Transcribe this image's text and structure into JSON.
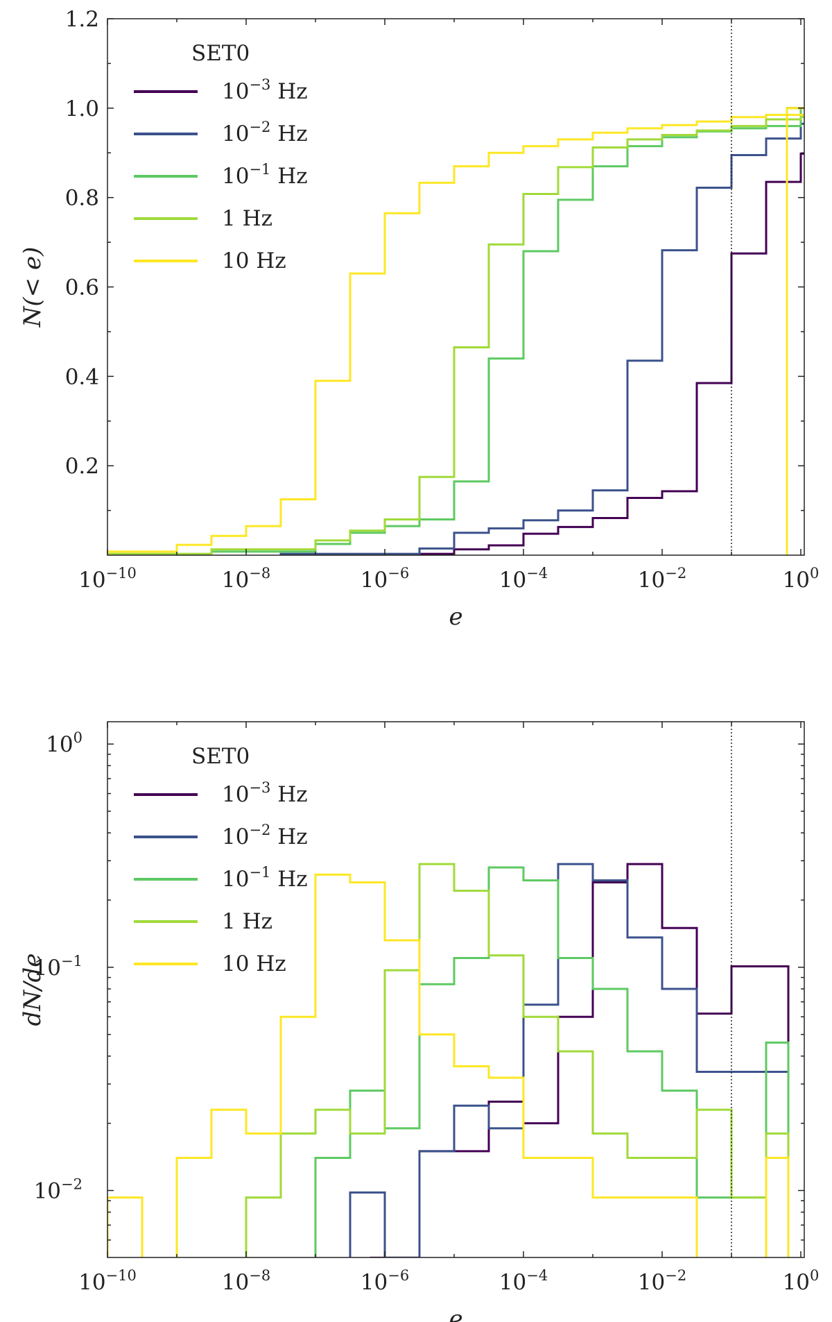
{
  "chart_data": [
    {
      "type": "histogram-step",
      "panel": "cumulative",
      "xlabel": "e",
      "ylabel": "N(< e)",
      "xscale": "log",
      "yscale": "linear",
      "xlim": [
        -10,
        0.05
      ],
      "ylim": [
        0,
        1.2
      ],
      "xticks": [
        {
          "v": -10,
          "b": "10",
          "s": "−10"
        },
        {
          "v": -8,
          "b": "10",
          "s": "−8"
        },
        {
          "v": -6,
          "b": "10",
          "s": "−6"
        },
        {
          "v": -4,
          "b": "10",
          "s": "−4"
        },
        {
          "v": -2,
          "b": "10",
          "s": "−2"
        },
        {
          "v": 0,
          "b": "10",
          "s": "0"
        }
      ],
      "yticks": [
        {
          "v": 0.2,
          "t": "0.2"
        },
        {
          "v": 0.4,
          "t": "0.4"
        },
        {
          "v": 0.6,
          "t": "0.6"
        },
        {
          "v": 0.8,
          "t": "0.8"
        },
        {
          "v": 1.0,
          "t": "1.0"
        },
        {
          "v": 1.2,
          "t": "1.2"
        }
      ],
      "vline_log_e": -1,
      "legend": {
        "title": "SET0",
        "position": "upper-left"
      },
      "series": [
        {
          "name": "10^-3 Hz",
          "label_base": "10",
          "label_sup": "−3",
          "label_unit": " Hz",
          "color": "#440154",
          "bins": [
            -5.5,
            4.0
          ],
          "step_log": 0.5,
          "values": [
            0.003,
            0.013,
            0.022,
            0.048,
            0.063,
            0.083,
            0.128,
            0.143,
            0.385,
            0.675,
            0.835,
            0.898,
            1.0
          ]
        },
        {
          "name": "10^-2 Hz",
          "label_base": "10",
          "label_sup": "−2",
          "label_unit": " Hz",
          "color": "#3b528b",
          "bins": [
            -7.5,
            4.0
          ],
          "step_log": 0.5,
          "values": [
            0.003,
            0.003,
            0.003,
            0.003,
            0.015,
            0.05,
            0.06,
            0.078,
            0.1,
            0.145,
            0.435,
            0.682,
            0.822,
            0.895,
            0.932,
            0.965,
            1.0
          ]
        },
        {
          "name": "10^-1 Hz",
          "label_base": "10",
          "label_sup": "−1",
          "label_unit": " Hz",
          "color": "#5ec962",
          "bins": [
            -8.5,
            4.0
          ],
          "step_log": 0.5,
          "values": [
            0.008,
            0.008,
            0.008,
            0.025,
            0.05,
            0.065,
            0.08,
            0.165,
            0.44,
            0.68,
            0.795,
            0.87,
            0.915,
            0.935,
            0.948,
            0.955,
            0.96,
            1.0
          ]
        },
        {
          "name": "1 Hz",
          "label_base": "1",
          "label_sup": "",
          "label_unit": " Hz",
          "color": "#a0da39",
          "bins": [
            -10.0,
            4.0
          ],
          "step_log": 0.5,
          "values": [
            0.003,
            0.003,
            0.003,
            0.013,
            0.013,
            0.013,
            0.033,
            0.055,
            0.08,
            0.175,
            0.465,
            0.695,
            0.808,
            0.868,
            0.912,
            0.93,
            0.94,
            0.95,
            0.96,
            0.975,
            0.98,
            1.0
          ]
        },
        {
          "name": "10 Hz",
          "label_base": "10",
          "label_sup": "",
          "label_unit": " Hz",
          "color": "#fde725",
          "bins": [
            -10.0,
            4.0
          ],
          "step_log": 0.5,
          "values": [
            0.008,
            0.008,
            0.023,
            0.043,
            0.065,
            0.125,
            0.39,
            0.63,
            0.765,
            0.833,
            0.87,
            0.9,
            0.915,
            0.93,
            0.945,
            0.955,
            0.962,
            0.97,
            0.98,
            0.985,
            0.985,
            1.0
          ]
        }
      ]
    },
    {
      "type": "histogram-step",
      "panel": "differential",
      "xlabel": "e",
      "ylabel": "dN/de",
      "xscale": "log",
      "yscale": "log",
      "xlim": [
        -10,
        0.05
      ],
      "ylim": [
        -2.3,
        0.1
      ],
      "xticks": [
        {
          "v": -10,
          "b": "10",
          "s": "−10"
        },
        {
          "v": -8,
          "b": "10",
          "s": "−8"
        },
        {
          "v": -6,
          "b": "10",
          "s": "−6"
        },
        {
          "v": -4,
          "b": "10",
          "s": "−4"
        },
        {
          "v": -2,
          "b": "10",
          "s": "−2"
        },
        {
          "v": 0,
          "b": "10",
          "s": "0"
        }
      ],
      "yticks": [
        {
          "v": -2,
          "b": "10",
          "s": "−2"
        },
        {
          "v": -1,
          "b": "10",
          "s": "−1"
        },
        {
          "v": 0,
          "b": "10",
          "s": "0"
        }
      ],
      "vline_log_e": -1,
      "legend": {
        "title": "SET0",
        "position": "upper-left"
      },
      "series": [
        {
          "name": "10^-3 Hz",
          "label_base": "10",
          "label_sup": "−3",
          "label_unit": " Hz",
          "color": "#440154",
          "edges": [
            -6.2,
            -5.5,
            -4.5,
            -4.0,
            -3.5,
            -3.0,
            -2.5,
            -2.0,
            -1.5,
            -1.0,
            -0.5,
            -0.18
          ],
          "values": [
            0.005,
            0.015,
            0.025,
            0.02,
            0.06,
            0.24,
            0.29,
            0.15,
            0.062,
            0.101,
            0.101
          ]
        },
        {
          "name": "10^-2 Hz",
          "label_base": "10",
          "label_sup": "−2",
          "label_unit": " Hz",
          "color": "#3b528b",
          "edges": [
            -6.5,
            -6.0,
            -5.5,
            -5.0,
            -4.5,
            -4.0,
            -3.5,
            -3.0,
            -2.5,
            -2.0,
            -1.5,
            -1.0,
            -0.18
          ],
          "values": [
            0.0098,
            0.005,
            0.015,
            0.024,
            0.019,
            0.068,
            0.29,
            0.245,
            0.136,
            0.08,
            0.034,
            0.034
          ]
        },
        {
          "name": "10^-1 Hz",
          "label_base": "10",
          "label_sup": "−1",
          "label_unit": " Hz",
          "color": "#5ec962",
          "edges": [
            -7.0,
            -6.5,
            -6.0,
            -5.5,
            -5.0,
            -4.5,
            -4.0,
            -3.5,
            -3.0,
            -2.5,
            -2.0,
            -1.5,
            -1.0,
            -0.5,
            -0.18
          ],
          "values": [
            0.014,
            0.028,
            0.019,
            0.084,
            0.11,
            0.28,
            0.245,
            0.11,
            0.08,
            0.042,
            0.028,
            0.0093,
            0.0093,
            0.046
          ]
        },
        {
          "name": "1 Hz",
          "label_base": "1",
          "label_sup": "",
          "label_unit": " Hz",
          "color": "#a0da39",
          "edges": [
            -8.0,
            -7.5,
            -7.0,
            -6.5,
            -6.0,
            -5.5,
            -5.0,
            -4.5,
            -4.0,
            -3.5,
            -3.0,
            -2.5,
            -2.0,
            -1.5,
            -1.0,
            -0.5,
            -0.18
          ],
          "values": [
            0.0093,
            0.018,
            0.023,
            0.018,
            0.097,
            0.29,
            0.22,
            0.113,
            0.06,
            0.042,
            0.018,
            0.014,
            0.014,
            0.023,
            0.0093,
            0.018
          ]
        },
        {
          "name": "10 Hz",
          "label_base": "10",
          "label_sup": "",
          "label_unit": " Hz",
          "color": "#fde725",
          "edges": [
            -10.0,
            -9.5,
            -9.0,
            -8.5,
            -8.0,
            -7.5,
            -7.0,
            -6.5,
            -6.0,
            -5.5,
            -5.0,
            -4.5,
            -4.0,
            -3.5,
            -3.0,
            -2.5,
            -2.0,
            -1.5,
            -1.0,
            -0.5,
            -0.18
          ],
          "values": [
            0.0093,
            0.0049,
            0.014,
            0.023,
            0.018,
            0.06,
            0.26,
            0.24,
            0.132,
            0.05,
            0.036,
            0.032,
            0.014,
            0.014,
            0.0093,
            0.0093,
            0.0093,
            0.0049,
            0.0049,
            0.014
          ]
        }
      ]
    }
  ]
}
